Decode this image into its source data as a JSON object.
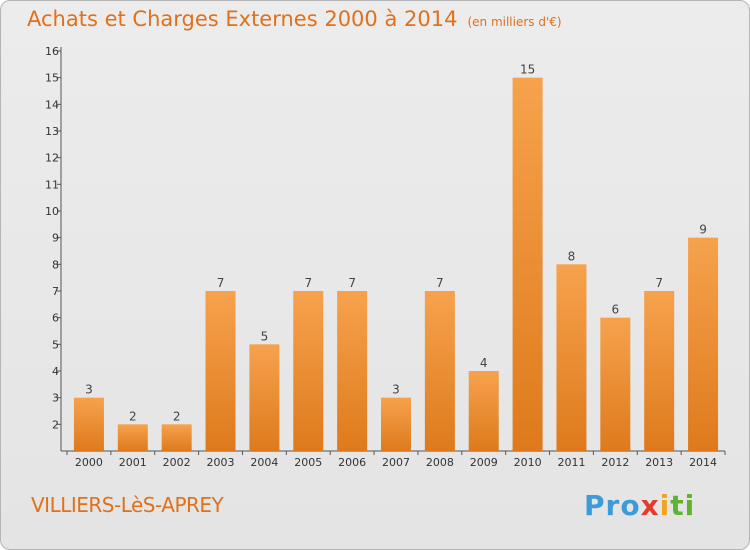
{
  "header": {
    "title": "Achats et Charges Externes 2000 à 2014",
    "unit": "(en milliers d'€)"
  },
  "footer": {
    "commune": "VILLIERS-LèS-APREY",
    "logo_parts": [
      "Pro",
      "x",
      "i",
      "ti"
    ]
  },
  "colors": {
    "title": "#e0711b",
    "bar_light": "#f6a24d",
    "bar_dark": "#de7a1c",
    "background": "#e8e8e8"
  },
  "chart_data": {
    "type": "bar",
    "title": "Achats et Charges Externes 2000 à 2014",
    "xlabel": "",
    "ylabel": "",
    "categories": [
      "2000",
      "2001",
      "2002",
      "2003",
      "2004",
      "2005",
      "2006",
      "2007",
      "2008",
      "2009",
      "2010",
      "2011",
      "2012",
      "2013",
      "2014"
    ],
    "values": [
      3,
      2,
      2,
      7,
      5,
      7,
      7,
      3,
      7,
      4,
      15,
      8,
      6,
      7,
      9
    ],
    "ylim": [
      1,
      16
    ],
    "yticks": [
      2,
      3,
      4,
      5,
      6,
      7,
      8,
      9,
      10,
      11,
      12,
      13,
      14,
      15,
      16
    ],
    "grid": false,
    "legend": "none"
  }
}
